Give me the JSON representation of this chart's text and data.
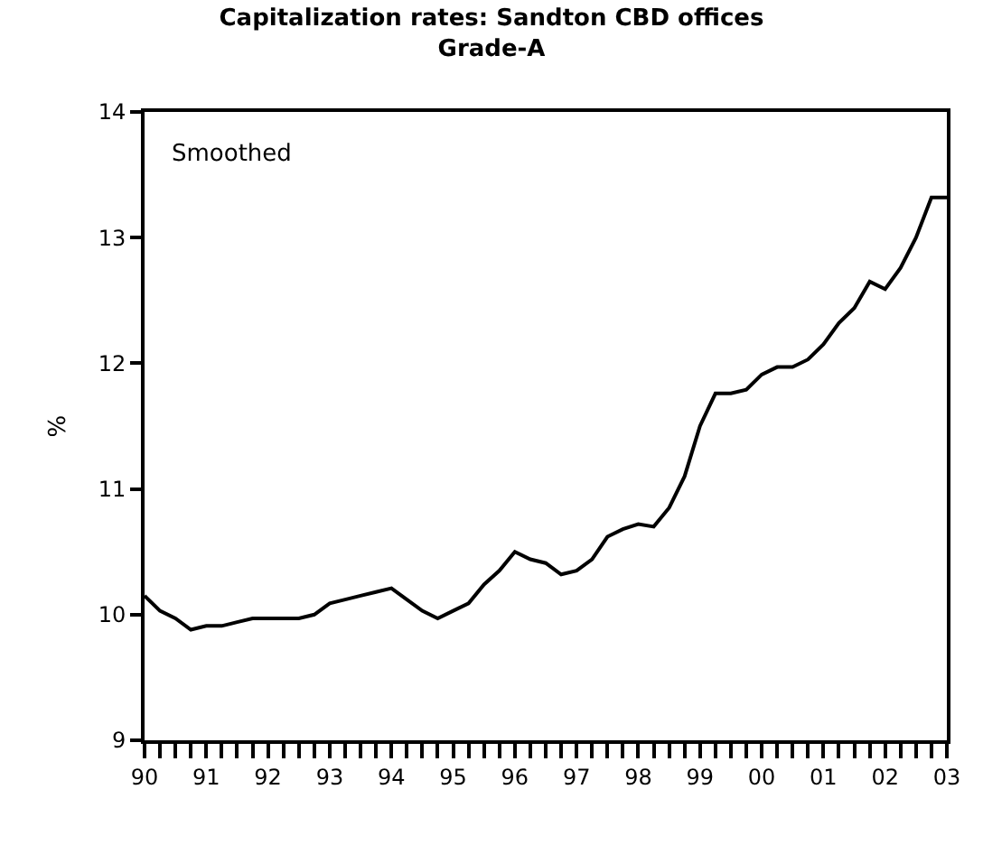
{
  "chart_data": {
    "type": "line",
    "title": "Capitalization rates: Sandton CBD offices",
    "subtitle": "Grade-A",
    "ylabel": "%",
    "annotations": [
      "Smoothed"
    ],
    "x": [
      1990.0,
      1990.25,
      1990.5,
      1990.75,
      1991.0,
      1991.25,
      1991.5,
      1991.75,
      1992.0,
      1992.25,
      1992.5,
      1992.75,
      1993.0,
      1993.25,
      1993.5,
      1993.75,
      1994.0,
      1994.25,
      1994.5,
      1994.75,
      1995.0,
      1995.25,
      1995.5,
      1995.75,
      1996.0,
      1996.25,
      1996.5,
      1996.75,
      1997.0,
      1997.25,
      1997.5,
      1997.75,
      1998.0,
      1998.25,
      1998.5,
      1998.75,
      1999.0,
      1999.25,
      1999.5,
      1999.75,
      2000.0,
      2000.25,
      2000.5,
      2000.75,
      2001.0,
      2001.25,
      2001.5,
      2001.75,
      2002.0,
      2002.25,
      2002.5,
      2002.75,
      2003.0
    ],
    "series": [
      {
        "color": "#000000",
        "values": [
          10.15,
          10.03,
          9.97,
          9.88,
          9.91,
          9.91,
          9.94,
          9.97,
          9.97,
          9.97,
          9.97,
          10.0,
          10.09,
          10.12,
          10.15,
          10.18,
          10.21,
          10.12,
          10.03,
          9.97,
          10.03,
          10.09,
          10.24,
          10.35,
          10.5,
          10.44,
          10.41,
          10.32,
          10.35,
          10.44,
          10.62,
          10.68,
          10.72,
          10.7,
          10.85,
          11.1,
          11.5,
          11.76,
          11.76,
          11.79,
          11.91,
          11.97,
          11.97,
          12.03,
          12.15,
          12.32,
          12.44,
          12.65,
          12.59,
          12.76,
          13.0,
          13.32,
          13.32
        ]
      }
    ],
    "xlim": [
      1990,
      2003
    ],
    "xticks": [
      {
        "value": 1990,
        "label": "90"
      },
      {
        "value": 1990.25,
        "label": null
      },
      {
        "value": 1990.5,
        "label": null
      },
      {
        "value": 1990.75,
        "label": null
      },
      {
        "value": 1991,
        "label": "91"
      },
      {
        "value": 1991.25,
        "label": null
      },
      {
        "value": 1991.5,
        "label": null
      },
      {
        "value": 1991.75,
        "label": null
      },
      {
        "value": 1992,
        "label": "92"
      },
      {
        "value": 1992.25,
        "label": null
      },
      {
        "value": 1992.5,
        "label": null
      },
      {
        "value": 1992.75,
        "label": null
      },
      {
        "value": 1993,
        "label": "93"
      },
      {
        "value": 1993.25,
        "label": null
      },
      {
        "value": 1993.5,
        "label": null
      },
      {
        "value": 1993.75,
        "label": null
      },
      {
        "value": 1994,
        "label": "94"
      },
      {
        "value": 1994.25,
        "label": null
      },
      {
        "value": 1994.5,
        "label": null
      },
      {
        "value": 1994.75,
        "label": null
      },
      {
        "value": 1995,
        "label": "95"
      },
      {
        "value": 1995.25,
        "label": null
      },
      {
        "value": 1995.5,
        "label": null
      },
      {
        "value": 1995.75,
        "label": null
      },
      {
        "value": 1996,
        "label": "96"
      },
      {
        "value": 1996.25,
        "label": null
      },
      {
        "value": 1996.5,
        "label": null
      },
      {
        "value": 1996.75,
        "label": null
      },
      {
        "value": 1997,
        "label": "97"
      },
      {
        "value": 1997.25,
        "label": null
      },
      {
        "value": 1997.5,
        "label": null
      },
      {
        "value": 1997.75,
        "label": null
      },
      {
        "value": 1998,
        "label": "98"
      },
      {
        "value": 1998.25,
        "label": null
      },
      {
        "value": 1998.5,
        "label": null
      },
      {
        "value": 1998.75,
        "label": null
      },
      {
        "value": 1999,
        "label": "99"
      },
      {
        "value": 1999.25,
        "label": null
      },
      {
        "value": 1999.5,
        "label": null
      },
      {
        "value": 1999.75,
        "label": null
      },
      {
        "value": 2000,
        "label": "00"
      },
      {
        "value": 2000.25,
        "label": null
      },
      {
        "value": 2000.5,
        "label": null
      },
      {
        "value": 2000.75,
        "label": null
      },
      {
        "value": 2001,
        "label": "01"
      },
      {
        "value": 2001.25,
        "label": null
      },
      {
        "value": 2001.5,
        "label": null
      },
      {
        "value": 2001.75,
        "label": null
      },
      {
        "value": 2002,
        "label": "02"
      },
      {
        "value": 2002.25,
        "label": null
      },
      {
        "value": 2002.5,
        "label": null
      },
      {
        "value": 2002.75,
        "label": null
      },
      {
        "value": 2003,
        "label": "03"
      }
    ],
    "ylim": [
      9,
      14
    ],
    "yticks": [
      9,
      10,
      11,
      12,
      13,
      14
    ],
    "marker": "none",
    "line_style": "solid"
  }
}
